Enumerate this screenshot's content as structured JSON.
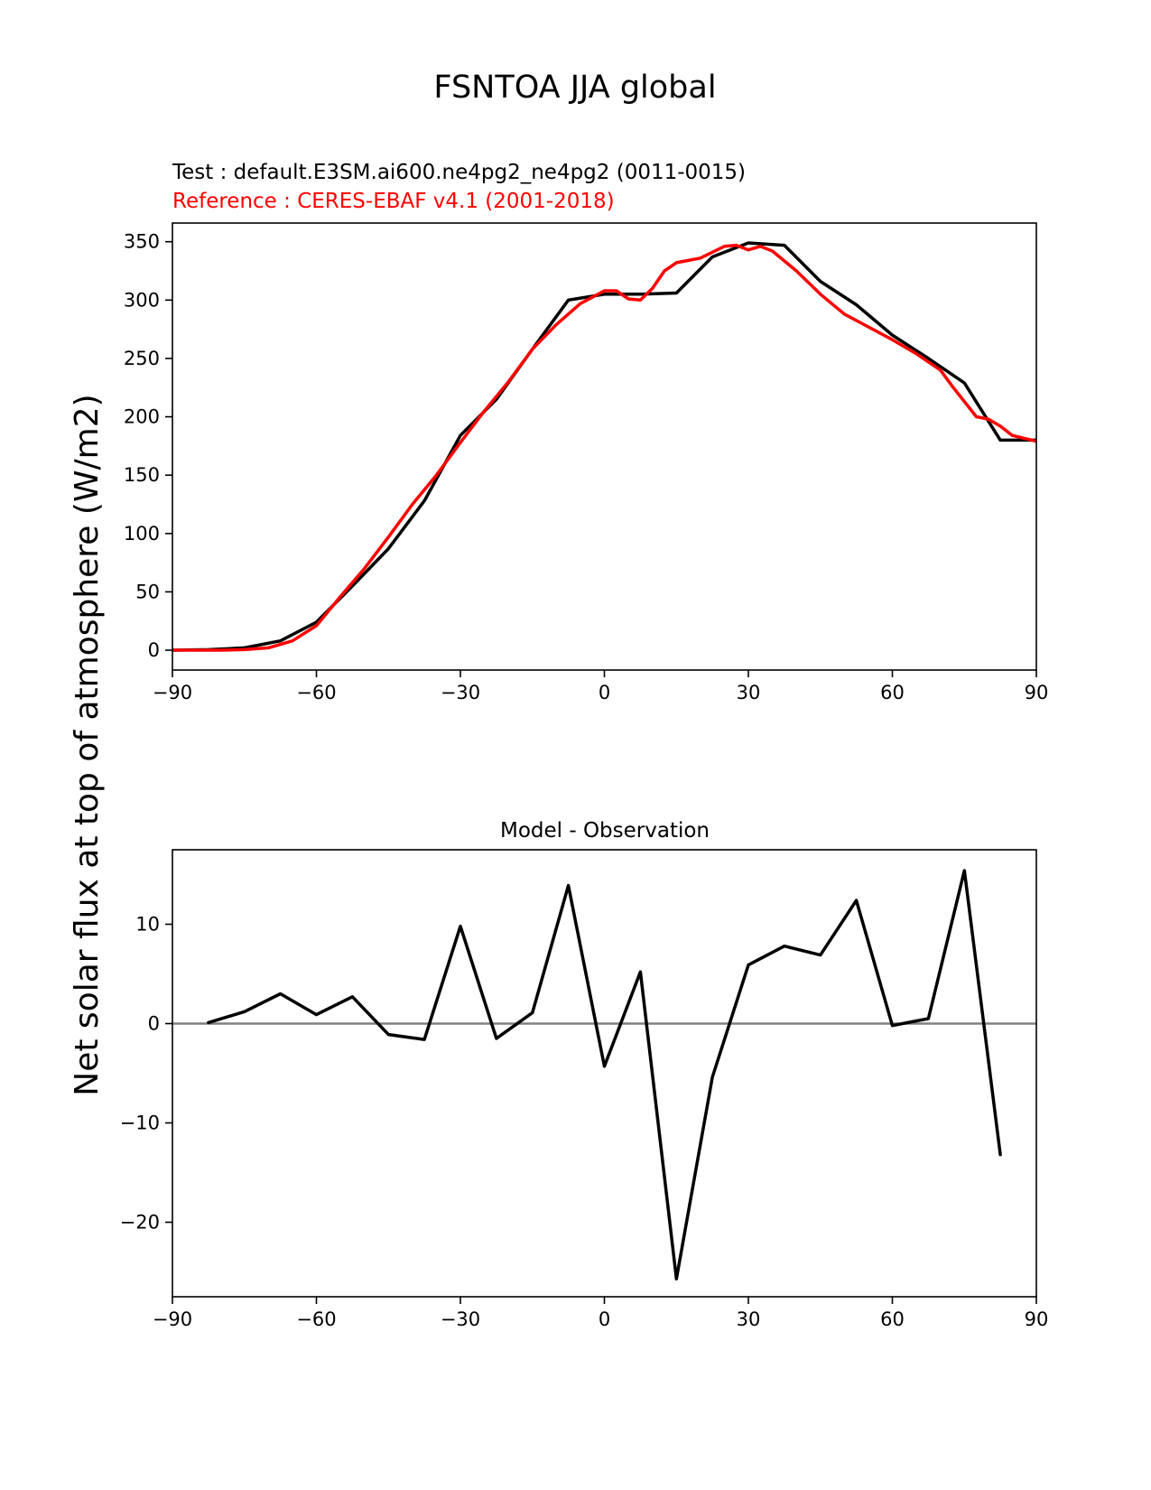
{
  "figure_title": "FSNTOA JJA global",
  "colors": {
    "test": "#000000",
    "reference": "#ff0000",
    "zero_line": "#808080",
    "axes": "#000000"
  },
  "chart_data": [
    {
      "type": "line",
      "test_label": "Test : default.E3SM.ai600.ne4pg2_ne4pg2 (0011-0015)",
      "reference_label": "Reference : CERES-EBAF v4.1 (2001-2018)",
      "ylabel": "Net solar flux at top of atmosphere (W/m2)",
      "xlim": [
        -90,
        90
      ],
      "ylim": [
        -17,
        366
      ],
      "xticks": [
        -90,
        -60,
        -30,
        0,
        30,
        60,
        90
      ],
      "xtick_labels": [
        "−90",
        "−60",
        "−30",
        "0",
        "30",
        "60",
        "90"
      ],
      "yticks": [
        0,
        50,
        100,
        150,
        200,
        250,
        300,
        350
      ],
      "ytick_labels": [
        "0",
        "50",
        "100",
        "150",
        "200",
        "250",
        "300",
        "350"
      ],
      "series": [
        {
          "name": "test",
          "color": "#000000",
          "x": [
            -90,
            -82.5,
            -75,
            -67.5,
            -60,
            -52.5,
            -45,
            -37.5,
            -30,
            -22.5,
            -15,
            -7.5,
            0,
            7.5,
            15,
            22.5,
            30,
            37.5,
            45,
            52.5,
            60,
            67.5,
            75,
            82.5,
            90
          ],
          "y": [
            0,
            0.5,
            2,
            8,
            24,
            55,
            87,
            128,
            184,
            215,
            258,
            300,
            305,
            305,
            306,
            337,
            349,
            347,
            316,
            296,
            270,
            250,
            229,
            180,
            180
          ]
        },
        {
          "name": "reference",
          "color": "#ff0000",
          "x": [
            -90,
            -85,
            -80,
            -75,
            -70,
            -65,
            -60,
            -55,
            -50,
            -45,
            -40,
            -35,
            -30,
            -25,
            -20,
            -15,
            -10,
            -5,
            0,
            2.5,
            5,
            7.5,
            10,
            12.5,
            15,
            17.5,
            20,
            22.5,
            25,
            27.5,
            30,
            32.5,
            35,
            40,
            45,
            50,
            55,
            60,
            65,
            70,
            72.5,
            75,
            77.5,
            80,
            82.5,
            85,
            90
          ],
          "y": [
            0,
            0,
            0,
            0.5,
            2,
            8,
            21,
            46,
            70,
            97,
            125,
            150,
            178,
            205,
            230,
            258,
            279,
            297,
            308,
            308,
            301,
            300,
            310,
            325,
            332,
            334,
            336,
            341,
            346,
            347,
            343,
            346,
            342,
            325,
            305,
            288,
            277,
            266,
            254,
            240,
            226,
            213,
            200,
            198,
            192,
            184,
            179
          ]
        }
      ]
    },
    {
      "type": "line",
      "title": "Model - Observation",
      "xlim": [
        -90,
        90
      ],
      "ylim": [
        -27.5,
        17.5
      ],
      "xticks": [
        -90,
        -60,
        -30,
        0,
        30,
        60,
        90
      ],
      "xtick_labels": [
        "−90",
        "−60",
        "−30",
        "0",
        "30",
        "60",
        "90"
      ],
      "yticks": [
        -20,
        -10,
        0,
        10
      ],
      "ytick_labels": [
        "−20",
        "−10",
        "0",
        "10"
      ],
      "zero_line": 0,
      "series": [
        {
          "name": "difference",
          "color": "#000000",
          "x": [
            -82.5,
            -75,
            -67.5,
            -60,
            -52.5,
            -45,
            -37.5,
            -30,
            -22.5,
            -15,
            -7.5,
            0,
            7.5,
            15,
            22.5,
            30,
            37.5,
            45,
            52.5,
            60,
            67.5,
            75,
            82.5
          ],
          "y": [
            0.1,
            1.2,
            3,
            0.9,
            2.7,
            -1.1,
            -1.6,
            9.8,
            -1.5,
            1.1,
            13.9,
            -4.3,
            5.2,
            -25.7,
            -5.4,
            5.9,
            7.8,
            6.9,
            12.4,
            -0.2,
            0.5,
            15.4,
            -13.2
          ]
        }
      ]
    }
  ]
}
